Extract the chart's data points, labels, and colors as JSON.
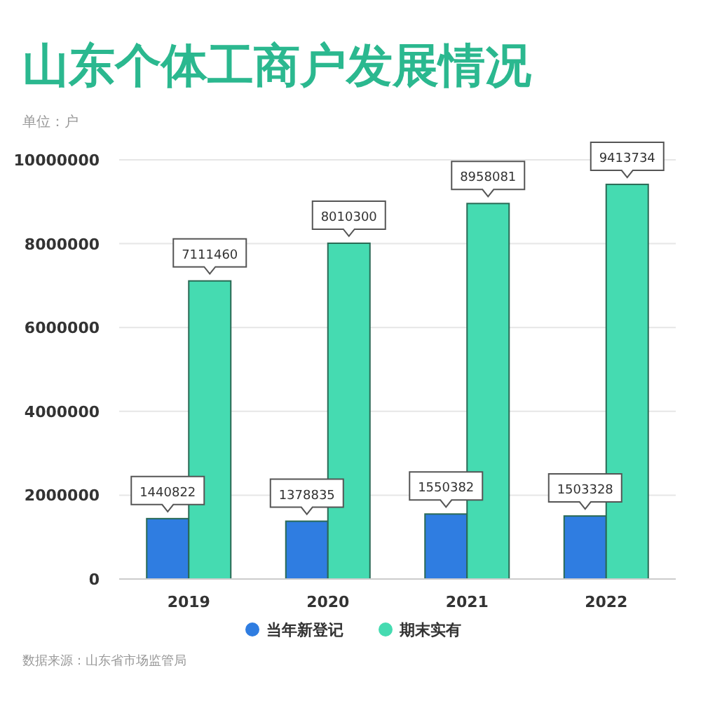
{
  "chart_data": {
    "type": "bar",
    "title": "山东个体工商户发展情况",
    "categories": [
      "2019",
      "2020",
      "2021",
      "2022"
    ],
    "series": [
      {
        "name": "当年新登记",
        "color": "#2f7de1",
        "values": [
          1440822,
          1378835,
          1550382,
          1503328
        ]
      },
      {
        "name": "期末实有",
        "color": "#45dbb1",
        "values": [
          7111460,
          8010300,
          8958081,
          9413734
        ]
      }
    ],
    "ylim": [
      0,
      10000000
    ],
    "yticks": [
      0,
      2000000,
      4000000,
      6000000,
      8000000,
      10000000
    ],
    "grid": "y",
    "data_labels": true,
    "legend": "bottom",
    "annotations": [
      "单位：户",
      "数据来源：山东省市场监管局"
    ]
  }
}
